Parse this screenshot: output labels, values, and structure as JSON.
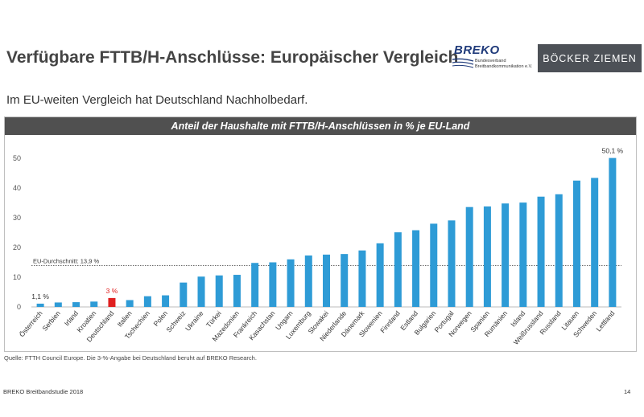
{
  "slide": {
    "title": "Verfügbare FTTB/H-Anschlüsse: Europäischer Vergleich",
    "subtitle": "Im EU-weiten Vergleich hat Deutschland Nachholbedarf.",
    "source": "Quelle: FTTH Council Europe. Die 3-%-Angabe bei Deutschland beruht auf BREKO Research.",
    "footer": "BREKO Breitbandstudie 2018",
    "page_number": "14"
  },
  "logo": {
    "name": "BREKO",
    "line1": "Bundesverband",
    "line2": "Breitbandkommunikation e.V."
  },
  "brand_box": {
    "label": "BÖCKER ZIEMEN"
  },
  "colors": {
    "bar": "#2e9bd6",
    "highlight": "#e02020",
    "header": "#505050",
    "brand_box": "#4d5157"
  },
  "chart_data": {
    "type": "bar",
    "title": "Anteil der Haushalte mit FTTB/H-Anschlüssen in % je EU-Land",
    "xlabel": "",
    "ylabel": "",
    "ylim": [
      0,
      55
    ],
    "yticks": [
      0,
      10,
      20,
      30,
      40,
      50
    ],
    "categories": [
      "Österreich",
      "Serbien",
      "Irland",
      "Kroatien",
      "Deutschland",
      "Italien",
      "Tschechien",
      "Polen",
      "Schweiz",
      "Ukraine",
      "Türkei",
      "Mazedonien",
      "Frankreich",
      "Kasachstan",
      "Ungarn",
      "Luxemburg",
      "Slowakei",
      "Niederlande",
      "Dänemark",
      "Slowenien",
      "Finnland",
      "Estland",
      "Bulgarien",
      "Portugal",
      "Norwegen",
      "Spanien",
      "Rumänien",
      "Island",
      "Weißrussland",
      "Russland",
      "Litauen",
      "Schweden",
      "Lettland"
    ],
    "values": [
      1.1,
      1.5,
      1.6,
      1.8,
      3.0,
      2.3,
      3.6,
      3.9,
      8.2,
      10.2,
      10.6,
      10.8,
      14.8,
      15.0,
      16.0,
      17.3,
      17.6,
      17.8,
      19.0,
      21.4,
      25.1,
      25.8,
      28.0,
      29.1,
      33.6,
      33.8,
      34.8,
      35.1,
      37.1,
      37.9,
      42.5,
      43.4,
      50.1
    ],
    "highlight_category": "Deutschland",
    "data_labels": [
      {
        "category": "Österreich",
        "text": "1,1 %"
      },
      {
        "category": "Deutschland",
        "text": "3 %"
      },
      {
        "category": "Lettland",
        "text": "50,1 %"
      }
    ],
    "reference_line": {
      "value": 13.9,
      "label": "EU-Durchschnitt: 13,9 %"
    }
  }
}
